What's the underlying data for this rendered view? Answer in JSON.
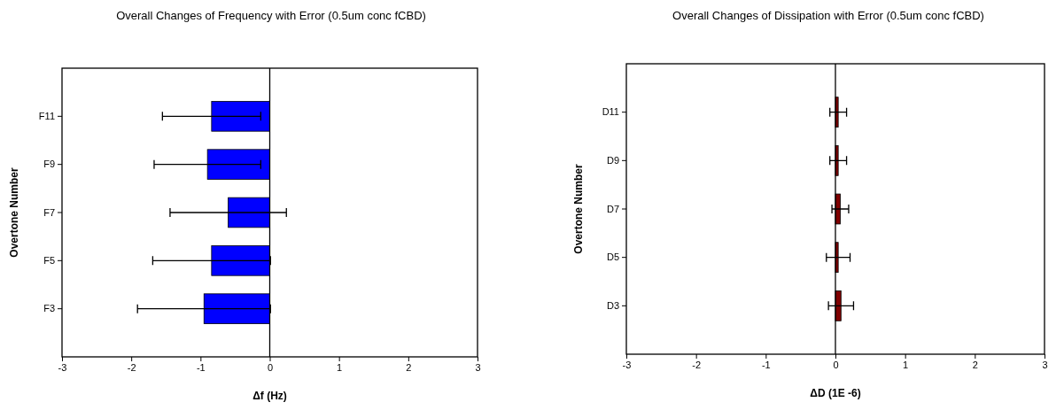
{
  "chart_data": [
    {
      "type": "bar",
      "orientation": "horizontal",
      "title": "Overall Changes of Frequency with Error (0.5um conc fCBD)",
      "xlabel": "Δf (Hz)",
      "ylabel": "Overtone Number",
      "categories": [
        "F11",
        "F9",
        "F7",
        "F5",
        "F3"
      ],
      "series": [
        {
          "color": "#0000ff",
          "values": [
            -0.84,
            -0.9,
            -0.6,
            -0.84,
            -0.95
          ],
          "errors": [
            0.71,
            0.77,
            0.84,
            0.85,
            0.96
          ]
        }
      ],
      "xlim": [
        -3,
        3
      ],
      "xticks": [
        -3,
        -2,
        -1,
        0,
        1,
        2,
        3
      ],
      "ref_lines": [
        {
          "axis": "x",
          "value": 0
        }
      ]
    },
    {
      "type": "bar",
      "orientation": "horizontal",
      "title": "Overall Changes of Dissipation with Error (0.5um conc fCBD)",
      "xlabel": "ΔD (1E -6)",
      "ylabel": "Overtone Number",
      "categories": [
        "D11",
        "D9",
        "D7",
        "D5",
        "D3"
      ],
      "series": [
        {
          "color": "#800000",
          "values": [
            0.04,
            0.04,
            0.07,
            0.04,
            0.08
          ],
          "errors": [
            0.12,
            0.12,
            0.12,
            0.17,
            0.18
          ]
        }
      ],
      "xlim": [
        -3,
        3
      ],
      "xticks": [
        -3,
        -2,
        -1,
        0,
        1,
        2,
        3
      ],
      "ref_lines": [
        {
          "axis": "x",
          "value": 0
        }
      ]
    }
  ]
}
